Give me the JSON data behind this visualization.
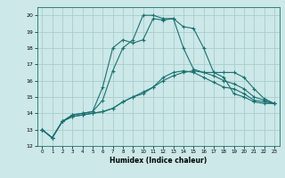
{
  "title": "",
  "xlabel": "Humidex (Indice chaleur)",
  "ylabel": "",
  "background_color": "#cce8e8",
  "grid_color": "#aacccc",
  "line_color": "#1a7070",
  "xlim": [
    -0.5,
    23.5
  ],
  "ylim": [
    12,
    20.5
  ],
  "yticks": [
    12,
    13,
    14,
    15,
    16,
    17,
    18,
    19,
    20
  ],
  "xticks": [
    0,
    1,
    2,
    3,
    4,
    5,
    6,
    7,
    8,
    9,
    10,
    11,
    12,
    13,
    14,
    15,
    16,
    17,
    18,
    19,
    20,
    21,
    22,
    23
  ],
  "series": [
    [
      13.0,
      12.5,
      13.5,
      13.8,
      13.9,
      14.0,
      14.1,
      14.3,
      14.7,
      15.0,
      15.2,
      15.6,
      16.0,
      16.3,
      16.5,
      16.6,
      16.5,
      16.3,
      16.0,
      15.8,
      15.5,
      15.0,
      14.8,
      14.6
    ],
    [
      13.0,
      12.5,
      13.5,
      13.8,
      13.9,
      14.0,
      14.1,
      14.3,
      14.7,
      15.0,
      15.3,
      15.6,
      16.2,
      16.5,
      16.6,
      16.5,
      16.2,
      15.9,
      15.6,
      15.5,
      15.2,
      14.8,
      14.7,
      14.6
    ],
    [
      13.0,
      12.5,
      13.5,
      13.9,
      14.0,
      14.1,
      14.8,
      16.6,
      18.0,
      18.5,
      20.0,
      20.0,
      19.8,
      19.8,
      19.3,
      19.2,
      18.0,
      16.5,
      16.5,
      16.5,
      16.2,
      15.5,
      14.9,
      14.6
    ],
    [
      13.0,
      12.5,
      13.5,
      13.9,
      14.0,
      14.1,
      15.6,
      18.0,
      18.5,
      18.3,
      18.5,
      19.8,
      19.7,
      19.8,
      18.0,
      16.7,
      16.5,
      16.5,
      16.2,
      15.2,
      15.0,
      14.7,
      14.6,
      14.6
    ]
  ]
}
